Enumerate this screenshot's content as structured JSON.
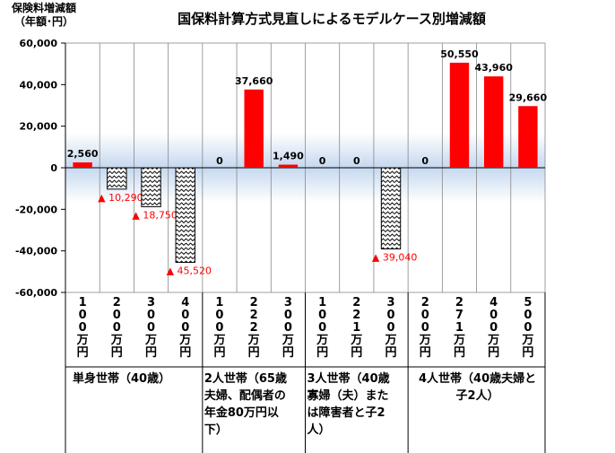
{
  "title": "国保料計算方式見直しによるモデルケース別増減額",
  "ylabel_lines": [
    "保険料増減額",
    "（年額･円）"
  ],
  "colors": {
    "positive": "#ff0000",
    "marker": "#ff0000",
    "axis": "#000000",
    "grid": "#888888"
  },
  "chart_data": {
    "type": "bar",
    "title": "国保料計算方式見直しによるモデルケース別増減額",
    "ylabel": "保険料増減額（年額･円）",
    "ylim": [
      -60000,
      60000
    ],
    "yticks": [
      "60,000",
      "40,000",
      "20,000",
      "0",
      "-20,000",
      "-40,000",
      "-60,000"
    ],
    "grid": true,
    "categories": [
      "100万円",
      "200万円",
      "300万円",
      "400万円",
      "100万円",
      "222万円",
      "300万円",
      "100万円",
      "221万円",
      "300万円",
      "200万円",
      "271万円",
      "400万円",
      "500万円"
    ],
    "values": [
      2560,
      -10290,
      -18750,
      -45520,
      0,
      37660,
      1490,
      0,
      0,
      -39040,
      0,
      50550,
      43960,
      29660
    ],
    "labels": [
      "2,560",
      "▲ 10,290",
      "▲ 18,750",
      "▲ 45,520",
      "0",
      "37,660",
      "1,490",
      "0",
      "0",
      "▲ 39,040",
      "0",
      "50,550",
      "43,960",
      "29,660"
    ],
    "groups": [
      {
        "label": "単身世帯（40歳）",
        "lines": [
          "単身世帯（40歳）"
        ],
        "start": 0,
        "end": 3
      },
      {
        "label": "2人世帯（65歳夫婦、配偶者の年金80万円以下）",
        "lines": [
          "2人世帯（65歳",
          "夫婦、配偶者の",
          "年金80万円以",
          "下）"
        ],
        "start": 4,
        "end": 6
      },
      {
        "label": "3人世帯（40歳寡婦（夫）または障害者と子2人）",
        "lines": [
          "3人世帯（40歳",
          "寡婦（夫）また",
          "は障害者と子2",
          "人）"
        ],
        "start": 7,
        "end": 9
      },
      {
        "label": "4人世帯（40歳夫婦と子2人）",
        "lines": [
          "4人世帯（40歳夫婦と",
          "子2人）"
        ],
        "start": 10,
        "end": 13
      }
    ]
  }
}
